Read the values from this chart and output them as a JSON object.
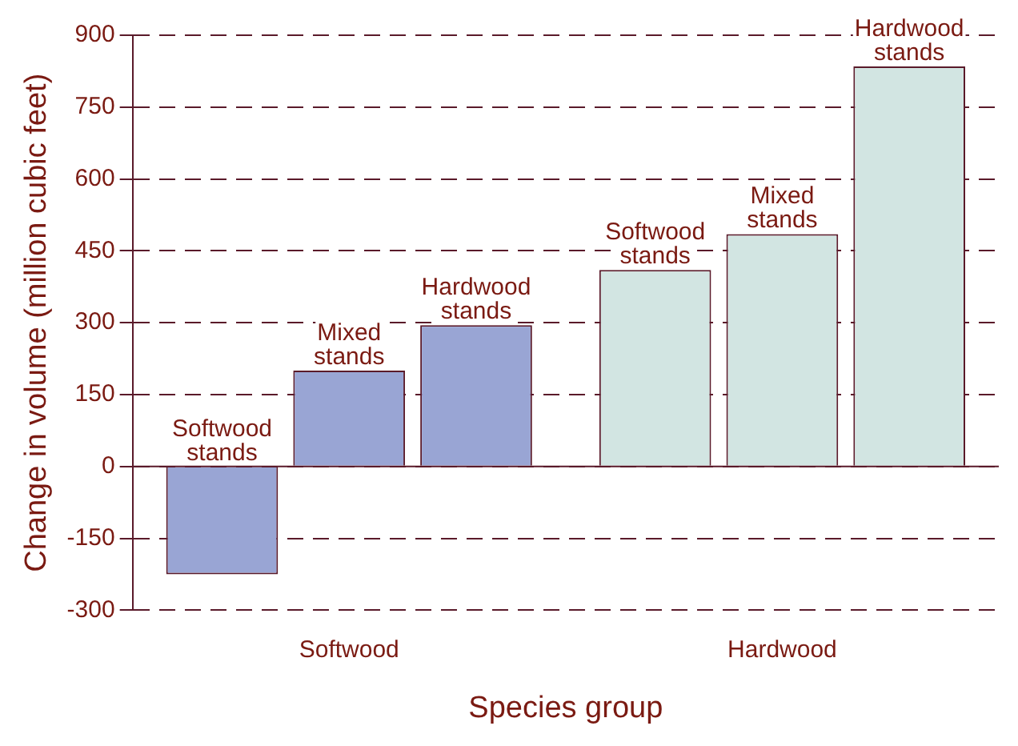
{
  "chart_data": {
    "type": "bar",
    "xlabel": "Species group",
    "ylabel": "Change in volume (million cubic feet)",
    "categories": [
      "Softwood",
      "Hardwood"
    ],
    "series": [
      {
        "name": "Softwood stands",
        "colors": [
          "#99a5d4",
          "#d2e5e2"
        ],
        "values": [
          -225,
          410
        ]
      },
      {
        "name": "Mixed stands",
        "colors": [
          "#99a5d4",
          "#d2e5e2"
        ],
        "values": [
          200,
          485
        ]
      },
      {
        "name": "Hardwood stands",
        "colors": [
          "#99a5d4",
          "#d2e5e2"
        ],
        "values": [
          295,
          835
        ]
      }
    ],
    "ylim": [
      -300,
      900
    ],
    "yticks": [
      -300,
      -150,
      0,
      150,
      300,
      450,
      600,
      750,
      900
    ],
    "grid": "y",
    "legend": false
  }
}
